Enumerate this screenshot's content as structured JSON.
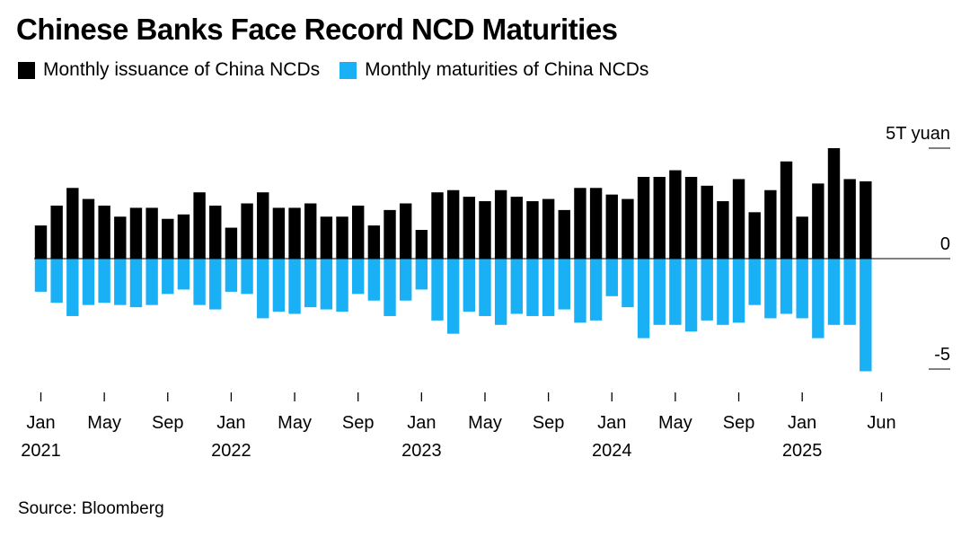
{
  "title": "Chinese Banks Face Record NCD Maturities",
  "source": "Source: Bloomberg",
  "colors": {
    "issuance": "#000000",
    "maturities": "#1ab0f5",
    "axis": "#000000"
  },
  "chart_data": {
    "type": "bar",
    "title": "Chinese Banks Face Record NCD Maturities",
    "ylabel": "",
    "xlabel": "",
    "unit_label": "5T yuan",
    "ylim": [
      -5,
      5
    ],
    "y_ticks": [
      {
        "value": 5,
        "label": "5T yuan"
      },
      {
        "value": 0,
        "label": "0"
      },
      {
        "value": -5,
        "label": "-5"
      }
    ],
    "grid": false,
    "legend_position": "top-left",
    "categories": [
      "2021-01",
      "2021-02",
      "2021-03",
      "2021-04",
      "2021-05",
      "2021-06",
      "2021-07",
      "2021-08",
      "2021-09",
      "2021-10",
      "2021-11",
      "2021-12",
      "2022-01",
      "2022-02",
      "2022-03",
      "2022-04",
      "2022-05",
      "2022-06",
      "2022-07",
      "2022-08",
      "2022-09",
      "2022-10",
      "2022-11",
      "2022-12",
      "2023-01",
      "2023-02",
      "2023-03",
      "2023-04",
      "2023-05",
      "2023-06",
      "2023-07",
      "2023-08",
      "2023-09",
      "2023-10",
      "2023-11",
      "2023-12",
      "2024-01",
      "2024-02",
      "2024-03",
      "2024-04",
      "2024-05",
      "2024-06",
      "2024-07",
      "2024-08",
      "2024-09",
      "2024-10",
      "2024-11",
      "2024-12",
      "2025-01",
      "2025-02",
      "2025-03",
      "2025-04",
      "2025-05",
      "2025-06"
    ],
    "x_ticks": [
      {
        "index": 0,
        "label": "Jan",
        "year": "2021"
      },
      {
        "index": 4,
        "label": "May",
        "year": ""
      },
      {
        "index": 8,
        "label": "Sep",
        "year": ""
      },
      {
        "index": 12,
        "label": "Jan",
        "year": "2022"
      },
      {
        "index": 16,
        "label": "May",
        "year": ""
      },
      {
        "index": 20,
        "label": "Sep",
        "year": ""
      },
      {
        "index": 24,
        "label": "Jan",
        "year": "2023"
      },
      {
        "index": 28,
        "label": "May",
        "year": ""
      },
      {
        "index": 32,
        "label": "Sep",
        "year": ""
      },
      {
        "index": 36,
        "label": "Jan",
        "year": "2024"
      },
      {
        "index": 40,
        "label": "May",
        "year": ""
      },
      {
        "index": 44,
        "label": "Sep",
        "year": ""
      },
      {
        "index": 48,
        "label": "Jan",
        "year": "2025"
      },
      {
        "index": 53,
        "label": "Jun",
        "year": ""
      }
    ],
    "series": [
      {
        "name": "Monthly issuance of China NCDs",
        "values": [
          1.5,
          2.4,
          3.2,
          2.7,
          2.4,
          1.9,
          2.3,
          2.3,
          1.8,
          2.0,
          3.0,
          2.4,
          1.4,
          2.5,
          3.0,
          2.3,
          2.3,
          2.5,
          1.9,
          1.9,
          2.4,
          1.5,
          2.2,
          2.5,
          1.3,
          3.0,
          3.1,
          2.8,
          2.6,
          3.1,
          2.8,
          2.6,
          2.7,
          2.2,
          3.2,
          3.2,
          2.9,
          2.7,
          3.7,
          3.7,
          4.0,
          3.7,
          3.3,
          2.6,
          3.6,
          2.1,
          3.1,
          4.4,
          1.9,
          3.4,
          5.0,
          3.6,
          3.5,
          0.0
        ]
      },
      {
        "name": "Monthly maturities of China NCDs",
        "values": [
          -1.5,
          -2.0,
          -2.6,
          -2.1,
          -2.0,
          -2.1,
          -2.2,
          -2.1,
          -1.6,
          -1.4,
          -2.1,
          -2.3,
          -1.5,
          -1.6,
          -2.7,
          -2.4,
          -2.5,
          -2.2,
          -2.3,
          -2.4,
          -1.6,
          -1.9,
          -2.6,
          -1.9,
          -1.4,
          -2.8,
          -3.4,
          -2.4,
          -2.6,
          -3.0,
          -2.5,
          -2.6,
          -2.6,
          -2.3,
          -2.9,
          -2.8,
          -1.7,
          -2.2,
          -3.6,
          -3.0,
          -3.0,
          -3.3,
          -2.8,
          -3.0,
          -2.9,
          -2.1,
          -2.7,
          -2.5,
          -2.7,
          -3.6,
          -3.0,
          -3.0,
          -5.1,
          0.0
        ]
      }
    ]
  }
}
